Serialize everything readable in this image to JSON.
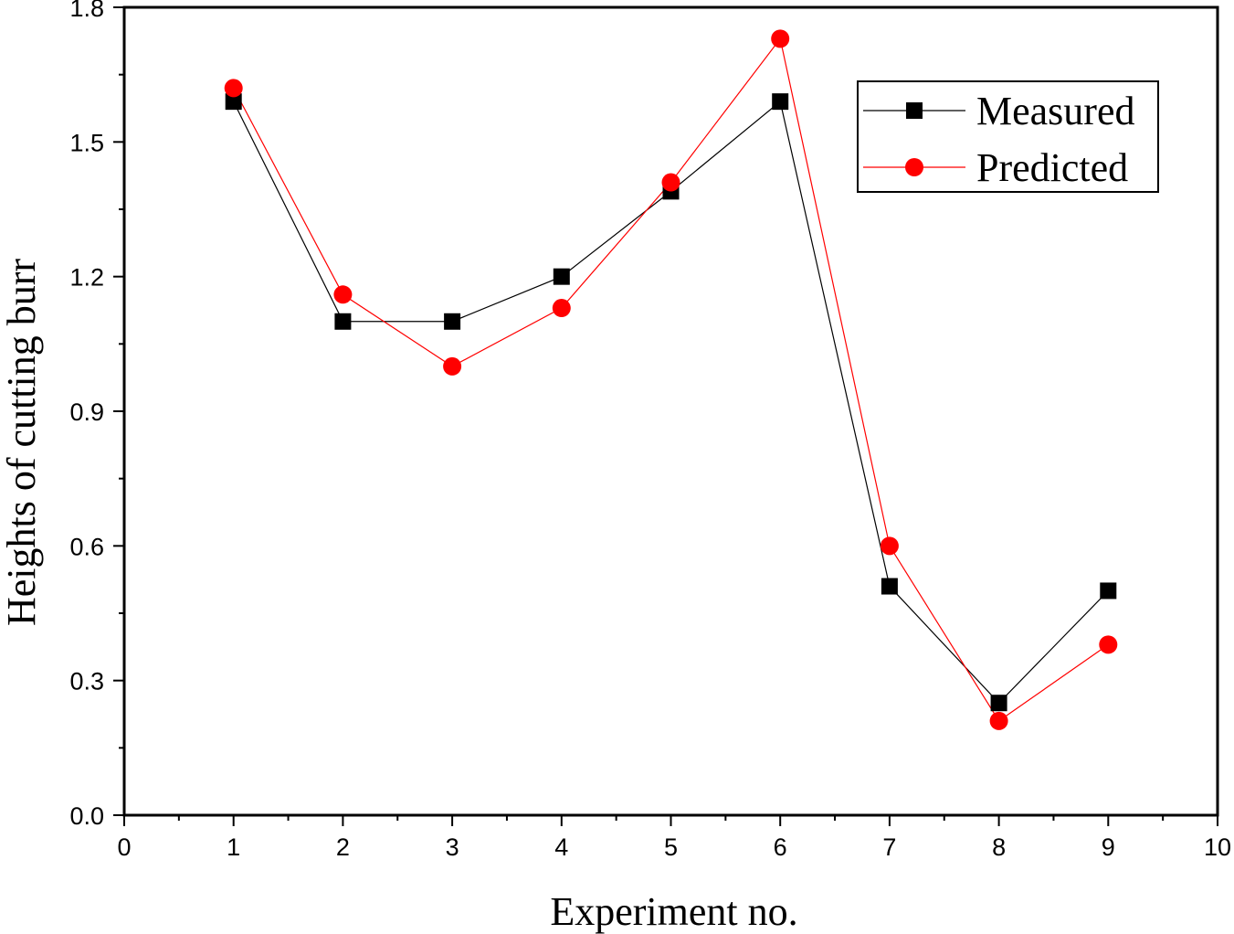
{
  "chart_data": {
    "type": "line",
    "title": "",
    "xlabel": "Experiment no.",
    "ylabel": "Heights of cutting burr",
    "xlim": [
      0,
      10
    ],
    "ylim": [
      0,
      1.8
    ],
    "x_ticks": [
      "0",
      "1",
      "2",
      "3",
      "4",
      "5",
      "6",
      "7",
      "8",
      "9",
      "10"
    ],
    "y_ticks": [
      "0.0",
      "0.3",
      "0.6",
      "0.9",
      "1.2",
      "1.5",
      "1.8"
    ],
    "grid": false,
    "legend_position": "top-right",
    "x": [
      1,
      2,
      3,
      4,
      5,
      6,
      7,
      8,
      9
    ],
    "series": [
      {
        "name": "Measured",
        "color": "#000000",
        "marker": "square",
        "values": [
          1.59,
          1.1,
          1.1,
          1.2,
          1.39,
          1.59,
          0.51,
          0.25,
          0.5
        ]
      },
      {
        "name": "Predicted",
        "color": "#ff0000",
        "marker": "circle",
        "values": [
          1.62,
          1.16,
          1.0,
          1.13,
          1.41,
          1.73,
          0.6,
          0.21,
          0.38
        ]
      }
    ]
  }
}
